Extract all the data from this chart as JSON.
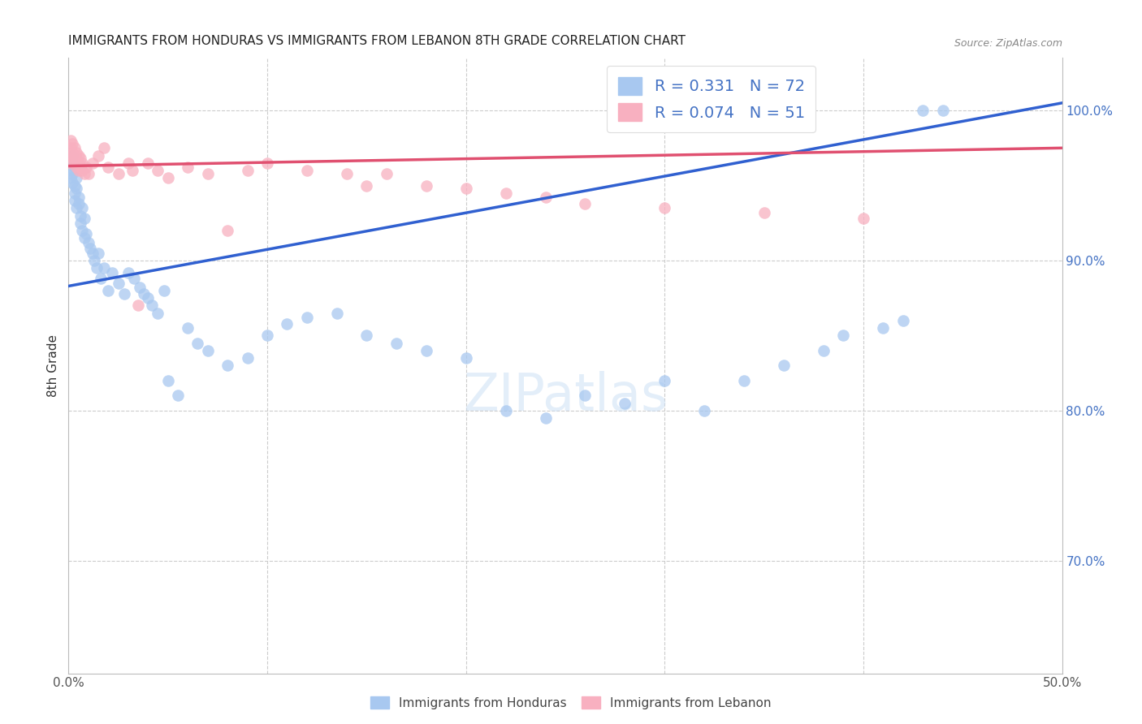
{
  "title": "IMMIGRANTS FROM HONDURAS VS IMMIGRANTS FROM LEBANON 8TH GRADE CORRELATION CHART",
  "source": "Source: ZipAtlas.com",
  "xlabel_bottom": "Immigrants from Honduras",
  "xlabel_bottom2": "Immigrants from Lebanon",
  "ylabel": "8th Grade",
  "xlim": [
    0.0,
    0.5
  ],
  "ylim": [
    0.625,
    1.035
  ],
  "R_blue": 0.331,
  "N_blue": 72,
  "R_pink": 0.074,
  "N_pink": 51,
  "blue_color": "#a8c8f0",
  "pink_color": "#f8b0c0",
  "blue_line_color": "#3060d0",
  "pink_line_color": "#e05070",
  "grid_color": "#cccccc",
  "blue_line_x0": 0.0,
  "blue_line_y0": 0.883,
  "blue_line_x1": 0.5,
  "blue_line_y1": 1.005,
  "pink_line_x0": 0.0,
  "pink_line_y0": 0.963,
  "pink_line_x1": 0.5,
  "pink_line_y1": 0.975,
  "blue_x": [
    0.001,
    0.001,
    0.001,
    0.002,
    0.002,
    0.002,
    0.002,
    0.003,
    0.003,
    0.003,
    0.003,
    0.004,
    0.004,
    0.004,
    0.005,
    0.005,
    0.006,
    0.006,
    0.007,
    0.007,
    0.008,
    0.008,
    0.009,
    0.01,
    0.011,
    0.012,
    0.013,
    0.014,
    0.015,
    0.016,
    0.018,
    0.02,
    0.022,
    0.025,
    0.028,
    0.03,
    0.033,
    0.036,
    0.038,
    0.04,
    0.042,
    0.045,
    0.048,
    0.05,
    0.055,
    0.06,
    0.065,
    0.07,
    0.08,
    0.09,
    0.1,
    0.11,
    0.12,
    0.135,
    0.15,
    0.165,
    0.18,
    0.2,
    0.22,
    0.24,
    0.26,
    0.28,
    0.3,
    0.32,
    0.34,
    0.36,
    0.38,
    0.39,
    0.41,
    0.42,
    0.43,
    0.44
  ],
  "blue_y": [
    0.96,
    0.955,
    0.968,
    0.958,
    0.952,
    0.965,
    0.97,
    0.95,
    0.945,
    0.962,
    0.94,
    0.948,
    0.935,
    0.955,
    0.942,
    0.938,
    0.93,
    0.925,
    0.935,
    0.92,
    0.928,
    0.915,
    0.918,
    0.912,
    0.908,
    0.905,
    0.9,
    0.895,
    0.905,
    0.888,
    0.895,
    0.88,
    0.892,
    0.885,
    0.878,
    0.892,
    0.888,
    0.882,
    0.878,
    0.875,
    0.87,
    0.865,
    0.88,
    0.82,
    0.81,
    0.855,
    0.845,
    0.84,
    0.83,
    0.835,
    0.85,
    0.858,
    0.862,
    0.865,
    0.85,
    0.845,
    0.84,
    0.835,
    0.8,
    0.795,
    0.81,
    0.805,
    0.82,
    0.8,
    0.82,
    0.83,
    0.84,
    0.85,
    0.855,
    0.86,
    1.0,
    1.0
  ],
  "pink_x": [
    0.001,
    0.001,
    0.001,
    0.001,
    0.002,
    0.002,
    0.002,
    0.003,
    0.003,
    0.003,
    0.004,
    0.004,
    0.004,
    0.005,
    0.005,
    0.005,
    0.006,
    0.006,
    0.007,
    0.007,
    0.008,
    0.009,
    0.01,
    0.012,
    0.015,
    0.018,
    0.02,
    0.025,
    0.03,
    0.032,
    0.035,
    0.04,
    0.045,
    0.05,
    0.06,
    0.07,
    0.08,
    0.09,
    0.1,
    0.12,
    0.14,
    0.15,
    0.16,
    0.18,
    0.2,
    0.22,
    0.24,
    0.26,
    0.3,
    0.35,
    0.4
  ],
  "pink_y": [
    0.98,
    0.975,
    0.97,
    0.965,
    0.978,
    0.972,
    0.968,
    0.975,
    0.97,
    0.965,
    0.972,
    0.968,
    0.962,
    0.97,
    0.965,
    0.96,
    0.968,
    0.962,
    0.965,
    0.96,
    0.958,
    0.962,
    0.958,
    0.965,
    0.97,
    0.975,
    0.962,
    0.958,
    0.965,
    0.96,
    0.87,
    0.965,
    0.96,
    0.955,
    0.962,
    0.958,
    0.92,
    0.96,
    0.965,
    0.96,
    0.958,
    0.95,
    0.958,
    0.95,
    0.948,
    0.945,
    0.942,
    0.938,
    0.935,
    0.932,
    0.928
  ]
}
